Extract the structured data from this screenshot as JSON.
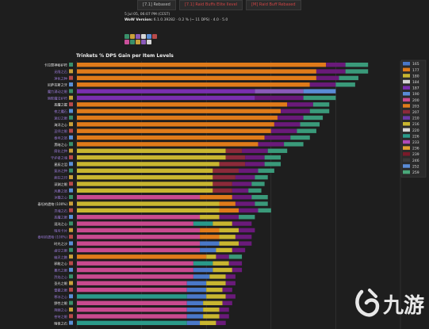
{
  "header": {
    "buttons": [
      {
        "label": "[7.1] Rebased",
        "color": "#bbbbbb"
      },
      {
        "label": "[7.1] Raid Buffs Elite Ilevel",
        "color": "#cc4444"
      },
      {
        "label": "[M] Raid Buff Rebased",
        "color": "#cc4444"
      }
    ],
    "meta_lines": [
      {
        "label": "",
        "value": "5 Jul 05, 06:07 PM (CEST)"
      },
      {
        "label": "WoW Version:",
        "value": "6.1.0.39282 · 0.2 % (~ 11 DPS) · 4.0 · 5.0"
      }
    ],
    "icon_rows": [
      [
        "#3a8f6a",
        "#c9a13a",
        "#8a5ab8",
        "#d6d6d6",
        "#5a8fd6",
        "#b84a4a"
      ],
      [
        "#c94f9a",
        "#3a8f6a",
        "#c9a13a",
        "#8a5ab8",
        "#d6d6d6"
      ]
    ]
  },
  "chart_data": {
    "type": "bar",
    "stacked": true,
    "orientation": "horizontal",
    "title": "Trinkets % DPS Gain per Item Levels",
    "xlim": [
      0,
      100
    ],
    "legend_position": "right",
    "legend": [
      {
        "label": "165",
        "color": "#4a78c8"
      },
      {
        "label": "177",
        "color": "#e07b1a"
      },
      {
        "label": "180",
        "color": "#c9b630"
      },
      {
        "label": "184",
        "color": "#d4d4d4"
      },
      {
        "label": "187",
        "color": "#7a2fb0"
      },
      {
        "label": "190",
        "color": "#5a8bd6"
      },
      {
        "label": "200",
        "color": "#c94a8f"
      },
      {
        "label": "203",
        "color": "#e07b1a"
      },
      {
        "label": "207",
        "color": "#8b2a3a"
      },
      {
        "label": "210",
        "color": "#6a3aa8"
      },
      {
        "label": "216",
        "color": "#c9b630"
      },
      {
        "label": "220",
        "color": "#d6d6d6"
      },
      {
        "label": "226",
        "color": "#2a9a8a"
      },
      {
        "label": "233",
        "color": "#b04ab8"
      },
      {
        "label": "236",
        "color": "#e0a030"
      },
      {
        "label": "239",
        "color": "#7a1a2a"
      },
      {
        "label": "246",
        "color": "#3a3a3a"
      },
      {
        "label": "252",
        "color": "#5a8bd6"
      },
      {
        "label": "259",
        "color": "#4aa87a"
      }
    ],
    "rows": [
      {
        "label": "卡拉赞神秘护符",
        "segments": [
          {
            "v": 77,
            "c": "#e07b1a"
          },
          {
            "v": 6,
            "c": "#6a1a7a"
          },
          {
            "v": 7,
            "c": "#3a9a7a"
          }
        ]
      },
      {
        "label": "无限之石",
        "segments": [
          {
            "v": 74,
            "c": "#e07b1a"
          },
          {
            "v": 9,
            "c": "#6a1a7a"
          },
          {
            "v": 7,
            "c": "#3a9a7a"
          }
        ]
      },
      {
        "label": "净化之种",
        "segments": [
          {
            "v": 74,
            "c": "#e07b1a"
          },
          {
            "v": 7,
            "c": "#6a1a7a"
          },
          {
            "v": 6,
            "c": "#3a9a7a"
          }
        ]
      },
      {
        "label": "尼萨拉斯之牙",
        "segments": [
          {
            "v": 72,
            "c": "#e07b1a"
          },
          {
            "v": 8,
            "c": "#6a1a7a"
          },
          {
            "v": 6,
            "c": "#3a9a7a"
          }
        ]
      },
      {
        "label": "魔力涌动之眼",
        "segments": [
          {
            "v": 55,
            "c": "#7a2fb0"
          },
          {
            "v": 15,
            "c": "#8a5ab8"
          },
          {
            "v": 10,
            "c": "#5a8bd6"
          }
        ]
      },
      {
        "label": "暗影魔法护符",
        "segments": [
          {
            "v": 55,
            "c": "#7a2fb0"
          },
          {
            "v": 15,
            "c": "#6a1a7a"
          },
          {
            "v": 10,
            "c": "#3a9a7a"
          }
        ]
      },
      {
        "label": "恶魔之握",
        "segments": [
          {
            "v": 65,
            "c": "#e07b1a"
          },
          {
            "v": 8,
            "c": "#6a1a7a"
          },
          {
            "v": 5,
            "c": "#3a9a7a"
          }
        ]
      },
      {
        "label": "夜之魔石",
        "segments": [
          {
            "v": 63,
            "c": "#e07b1a"
          },
          {
            "v": 9,
            "c": "#6a1a7a"
          },
          {
            "v": 6,
            "c": "#3a9a7a"
          }
        ]
      },
      {
        "label": "迷幻之眼",
        "segments": [
          {
            "v": 62,
            "c": "#e07b1a"
          },
          {
            "v": 8,
            "c": "#6a1a7a"
          },
          {
            "v": 6,
            "c": "#3a9a7a"
          }
        ]
      },
      {
        "label": "海洋之心",
        "segments": [
          {
            "v": 61,
            "c": "#e07b1a"
          },
          {
            "v": 8,
            "c": "#6a1a7a"
          },
          {
            "v": 6,
            "c": "#3a9a7a"
          }
        ]
      },
      {
        "label": "巫师之眼",
        "segments": [
          {
            "v": 60,
            "c": "#e07b1a"
          },
          {
            "v": 8,
            "c": "#6a1a7a"
          },
          {
            "v": 6,
            "c": "#3a9a7a"
          }
        ]
      },
      {
        "label": "泰坦之怒",
        "segments": [
          {
            "v": 58,
            "c": "#e07b1a"
          },
          {
            "v": 8,
            "c": "#6a1a7a"
          },
          {
            "v": 6,
            "c": "#3a9a7a"
          }
        ]
      },
      {
        "label": "黑暗之心",
        "segments": [
          {
            "v": 56,
            "c": "#e07b1a"
          },
          {
            "v": 8,
            "c": "#6a1a7a"
          },
          {
            "v": 6,
            "c": "#3a9a7a"
          }
        ]
      },
      {
        "label": "腐化之种",
        "segments": [
          {
            "v": 46,
            "c": "#c9b630"
          },
          {
            "v": 5,
            "c": "#8b2a3a"
          },
          {
            "v": 8,
            "c": "#6a1a7a"
          },
          {
            "v": 6,
            "c": "#3a9a7a"
          }
        ]
      },
      {
        "label": "守护者之魂",
        "segments": [
          {
            "v": 46,
            "c": "#c9b630"
          },
          {
            "v": 6,
            "c": "#8b2a3a"
          },
          {
            "v": 6,
            "c": "#6a1a7a"
          },
          {
            "v": 5,
            "c": "#3a9a7a"
          }
        ]
      },
      {
        "label": "星辰之泪",
        "segments": [
          {
            "v": 44,
            "c": "#c9b630"
          },
          {
            "v": 8,
            "c": "#8b2a3a"
          },
          {
            "v": 6,
            "c": "#6a1a7a"
          },
          {
            "v": 5,
            "c": "#3a9a7a"
          }
        ]
      },
      {
        "label": "复苏之种",
        "segments": [
          {
            "v": 42,
            "c": "#c9b630"
          },
          {
            "v": 8,
            "c": "#8b2a3a"
          },
          {
            "v": 6,
            "c": "#6a1a7a"
          },
          {
            "v": 5,
            "c": "#3a9a7a"
          }
        ]
      },
      {
        "label": "疯狂之印",
        "segments": [
          {
            "v": 42,
            "c": "#c9b630"
          },
          {
            "v": 7,
            "c": "#8b2a3a"
          },
          {
            "v": 6,
            "c": "#6a1a7a"
          },
          {
            "v": 4,
            "c": "#3a9a7a"
          }
        ]
      },
      {
        "label": "深渊之眼",
        "segments": [
          {
            "v": 42,
            "c": "#c9b630"
          },
          {
            "v": 6,
            "c": "#8b2a3a"
          },
          {
            "v": 6,
            "c": "#6a1a7a"
          },
          {
            "v": 4,
            "c": "#3a9a7a"
          }
        ]
      },
      {
        "label": "风暴之怒",
        "segments": [
          {
            "v": 42,
            "c": "#c9b630"
          },
          {
            "v": 6,
            "c": "#8b2a3a"
          },
          {
            "v": 5,
            "c": "#6a1a7a"
          },
          {
            "v": 4,
            "c": "#3a9a7a"
          }
        ]
      },
      {
        "label": "冰霜之心",
        "segments": [
          {
            "v": 38,
            "c": "#c94a8f"
          },
          {
            "v": 10,
            "c": "#e07b1a"
          },
          {
            "v": 6,
            "c": "#6a1a7a"
          },
          {
            "v": 5,
            "c": "#3a9a7a"
          }
        ]
      },
      {
        "label": "泰坦的遗物 (100%)",
        "segments": [
          {
            "v": 44,
            "c": "#c9b630"
          },
          {
            "v": 5,
            "c": "#e07b1a"
          },
          {
            "v": 6,
            "c": "#6a1a7a"
          },
          {
            "v": 4,
            "c": "#3a9a7a"
          }
        ]
      },
      {
        "label": "灵魂之石",
        "segments": [
          {
            "v": 44,
            "c": "#c9b630"
          },
          {
            "v": 6,
            "c": "#e07b1a"
          },
          {
            "v": 6,
            "c": "#6a1a7a"
          },
          {
            "v": 4,
            "c": "#3a9a7a"
          }
        ]
      },
      {
        "label": "恶魔之眼",
        "segments": [
          {
            "v": 38,
            "c": "#c94a8f"
          },
          {
            "v": 6,
            "c": "#c9b630"
          },
          {
            "v": 6,
            "c": "#6a1a7a"
          },
          {
            "v": 5,
            "c": "#3a9a7a"
          }
        ]
      },
      {
        "label": "混沌之心",
        "segments": [
          {
            "v": 36,
            "c": "#c94a8f"
          },
          {
            "v": 6,
            "c": "#2a9a8a"
          },
          {
            "v": 6,
            "c": "#c9b630"
          },
          {
            "v": 6,
            "c": "#6a1a7a"
          }
        ]
      },
      {
        "label": "暗月卡片",
        "segments": [
          {
            "v": 38,
            "c": "#c94a8f"
          },
          {
            "v": 6,
            "c": "#e07b1a"
          },
          {
            "v": 6,
            "c": "#c9b630"
          },
          {
            "v": 5,
            "c": "#6a1a7a"
          }
        ]
      },
      {
        "label": "泰坦的遗物 (100%)",
        "segments": [
          {
            "v": 38,
            "c": "#c94a8f"
          },
          {
            "v": 6,
            "c": "#e07b1a"
          },
          {
            "v": 5,
            "c": "#c9b630"
          },
          {
            "v": 5,
            "c": "#6a1a7a"
          }
        ]
      },
      {
        "label": "时光之沙",
        "segments": [
          {
            "v": 38,
            "c": "#c94a8f"
          },
          {
            "v": 6,
            "c": "#4a78c8"
          },
          {
            "v": 6,
            "c": "#c9b630"
          },
          {
            "v": 4,
            "c": "#6a1a7a"
          }
        ]
      },
      {
        "label": "虚空之眼",
        "segments": [
          {
            "v": 38,
            "c": "#c94a8f"
          },
          {
            "v": 5,
            "c": "#4a78c8"
          },
          {
            "v": 5,
            "c": "#c9b630"
          },
          {
            "v": 4,
            "c": "#6a1a7a"
          }
        ]
      },
      {
        "label": "幽灵之触",
        "segments": [
          {
            "v": 40,
            "c": "#e07b1a"
          },
          {
            "v": 3,
            "c": "#c9b630"
          },
          {
            "v": 4,
            "c": "#6a1a7a"
          },
          {
            "v": 4,
            "c": "#3a9a7a"
          }
        ]
      },
      {
        "label": "邪能之心",
        "segments": [
          {
            "v": 36,
            "c": "#c94a8f"
          },
          {
            "v": 6,
            "c": "#2a9a8a"
          },
          {
            "v": 5,
            "c": "#c9b630"
          },
          {
            "v": 4,
            "c": "#6a1a7a"
          }
        ]
      },
      {
        "label": "暮光之眼",
        "segments": [
          {
            "v": 36,
            "c": "#c94a8f"
          },
          {
            "v": 6,
            "c": "#4a78c8"
          },
          {
            "v": 6,
            "c": "#c9b630"
          },
          {
            "v": 3,
            "c": "#6a1a7a"
          }
        ]
      },
      {
        "label": "烈焰之心",
        "segments": [
          {
            "v": 36,
            "c": "#c94a8f"
          },
          {
            "v": 5,
            "c": "#4a78c8"
          },
          {
            "v": 5,
            "c": "#c9b630"
          },
          {
            "v": 3,
            "c": "#6a1a7a"
          }
        ]
      },
      {
        "label": "圣光之眼",
        "segments": [
          {
            "v": 34,
            "c": "#c94a8f"
          },
          {
            "v": 6,
            "c": "#4a78c8"
          },
          {
            "v": 6,
            "c": "#c9b630"
          },
          {
            "v": 3,
            "c": "#6a1a7a"
          }
        ]
      },
      {
        "label": "雷霆之眼",
        "segments": [
          {
            "v": 34,
            "c": "#c94a8f"
          },
          {
            "v": 6,
            "c": "#4a78c8"
          },
          {
            "v": 5,
            "c": "#c9b630"
          },
          {
            "v": 3,
            "c": "#6a1a7a"
          }
        ]
      },
      {
        "label": "寒冰之心",
        "segments": [
          {
            "v": 34,
            "c": "#2a9a8a"
          },
          {
            "v": 6,
            "c": "#4a78c8"
          },
          {
            "v": 6,
            "c": "#c9b630"
          },
          {
            "v": 3,
            "c": "#6a1a7a"
          }
        ]
      },
      {
        "label": "野性之眼",
        "segments": [
          {
            "v": 34,
            "c": "#c94a8f"
          },
          {
            "v": 5,
            "c": "#4a78c8"
          },
          {
            "v": 6,
            "c": "#c9b630"
          },
          {
            "v": 3,
            "c": "#6a1a7a"
          }
        ]
      },
      {
        "label": "荆棘之心",
        "segments": [
          {
            "v": 34,
            "c": "#c94a8f"
          },
          {
            "v": 5,
            "c": "#4a78c8"
          },
          {
            "v": 5,
            "c": "#c9b630"
          },
          {
            "v": 3,
            "c": "#6a1a7a"
          }
        ]
      },
      {
        "label": "苍穹之眼",
        "segments": [
          {
            "v": 34,
            "c": "#c94a8f"
          },
          {
            "v": 5,
            "c": "#4a78c8"
          },
          {
            "v": 5,
            "c": "#c9b630"
          },
          {
            "v": 3,
            "c": "#6a1a7a"
          }
        ]
      },
      {
        "label": "暗夜之石",
        "segments": [
          {
            "v": 34,
            "c": "#2a9a8a"
          },
          {
            "v": 4,
            "c": "#4a78c8"
          },
          {
            "v": 5,
            "c": "#c9b630"
          },
          {
            "v": 3,
            "c": "#6a1a7a"
          }
        ]
      }
    ]
  }
}
